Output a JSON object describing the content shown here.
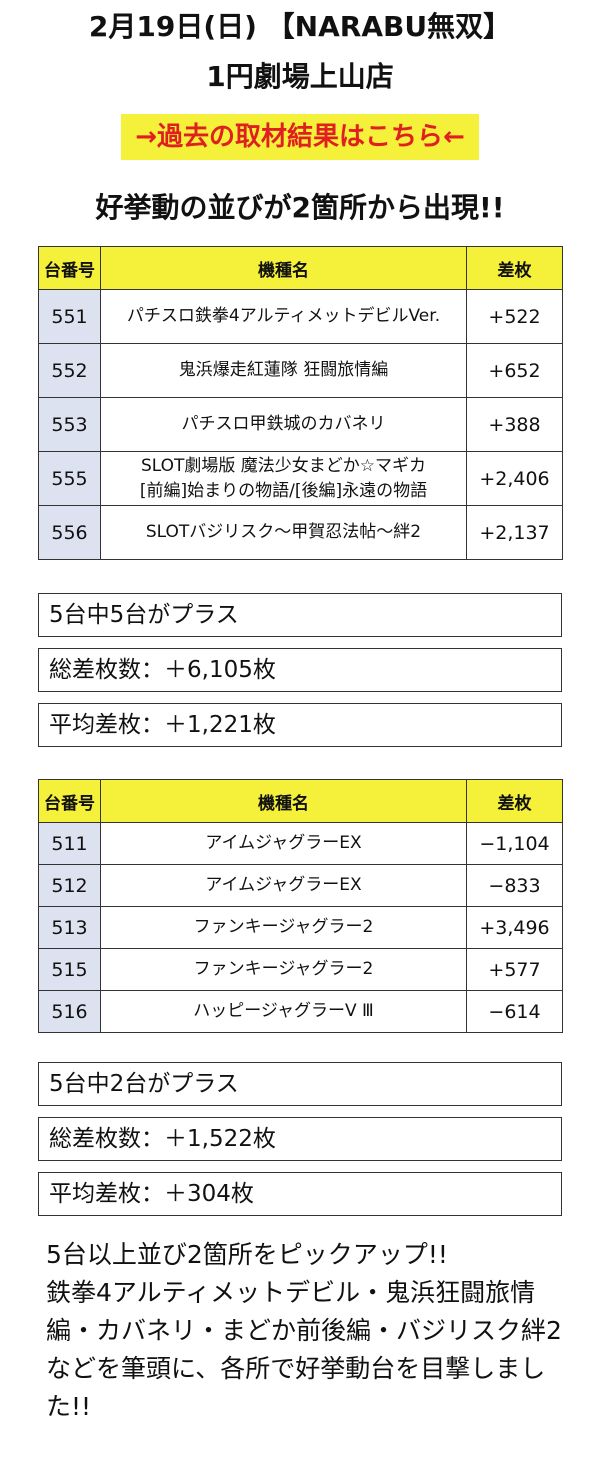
{
  "header": {
    "line1": "2月19日(日) 【NARABU無双】",
    "line2": "1円劇場上山店"
  },
  "link": {
    "label": "→過去の取材結果はこちら←"
  },
  "headline": "好挙動の並びが2箇所から出現!!",
  "table1": {
    "headers": [
      "台番号",
      "機種名",
      "差枚"
    ],
    "rows": [
      {
        "num": "551",
        "name1": "パチスロ鉄拳4アルティメットデビルVer.",
        "name2": "",
        "diff": "+522"
      },
      {
        "num": "552",
        "name1": "鬼浜爆走紅蓮隊 狂闘旅情編",
        "name2": "",
        "diff": "+652"
      },
      {
        "num": "553",
        "name1": "パチスロ甲鉄城のカバネリ",
        "name2": "",
        "diff": "+388"
      },
      {
        "num": "555",
        "name1": "SLOT劇場版 魔法少女まどか☆マギカ",
        "name2": "[前編]始まりの物語/[後編]永遠の物語",
        "diff": "+2,406"
      },
      {
        "num": "556",
        "name1": "SLOTバジリスク〜甲賀忍法帖〜絆2",
        "name2": "",
        "diff": "+2,137"
      }
    ]
  },
  "summary1": {
    "plus": "5台中5台がプラス",
    "total": "総差枚数：＋6,105枚",
    "avg": "平均差枚：＋1,221枚"
  },
  "table2": {
    "headers": [
      "台番号",
      "機種名",
      "差枚"
    ],
    "rows": [
      {
        "num": "511",
        "name": "アイムジャグラーEX",
        "diff": "−1,104"
      },
      {
        "num": "512",
        "name": "アイムジャグラーEX",
        "diff": "−833"
      },
      {
        "num": "513",
        "name": "ファンキージャグラー2",
        "diff": "+3,496"
      },
      {
        "num": "515",
        "name": "ファンキージャグラー2",
        "diff": "+577"
      },
      {
        "num": "516",
        "name": "ハッピージャグラーV Ⅲ",
        "diff": "−614"
      }
    ]
  },
  "summary2": {
    "plus": "5台中2台がプラス",
    "total": "総差枚数：＋1,522枚",
    "avg": "平均差枚：＋304枚"
  },
  "footer": {
    "line1": "5台以上並び2箇所をピックアップ!!",
    "line2": "鉄拳4アルティメットデビル・鬼浜狂闘旅情編・カバネリ・まどか前後編・バジリスク絆2などを筆頭に、各所で好挙動台を目撃しました!!"
  },
  "colors": {
    "accent": "#f5f03a",
    "link_text": "#e02020",
    "num_cell": "#dde2f0"
  }
}
